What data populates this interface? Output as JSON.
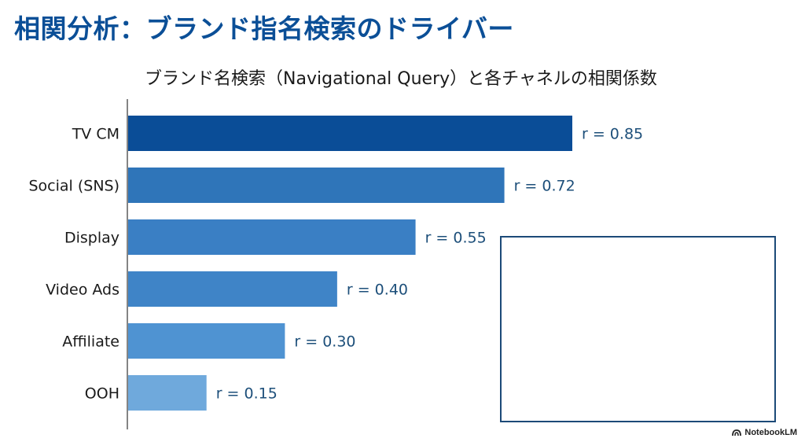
{
  "header": {
    "title": "相関分析：ブランド指名検索のドライバー"
  },
  "watermark": {
    "label": "NotebookLM",
    "icon": "notebooklm-logo-icon"
  },
  "colors": {
    "title": "#0b4f97",
    "bars": [
      "#0a4d97",
      "#2f75b9",
      "#3a7fc4",
      "#3f84c7",
      "#4f93d2",
      "#6fa9dc"
    ],
    "value_text": "#1d4f7a",
    "box_border": "#1c4a78"
  },
  "chart_data": {
    "type": "bar",
    "orientation": "horizontal",
    "title": "ブランド名検索（Navigational Query）と各チャネルの相関係数",
    "categories": [
      "TV CM",
      "Social (SNS)",
      "Display",
      "Video Ads",
      "Affiliate",
      "OOH"
    ],
    "values": [
      0.85,
      0.72,
      0.55,
      0.4,
      0.3,
      0.15
    ],
    "value_labels": [
      "r = 0.85",
      "r = 0.72",
      "r = 0.55",
      "r = 0.40",
      "r = 0.30",
      "r = 0.15"
    ],
    "xlim": [
      0,
      0.85
    ],
    "grid": false,
    "legend": "none"
  }
}
